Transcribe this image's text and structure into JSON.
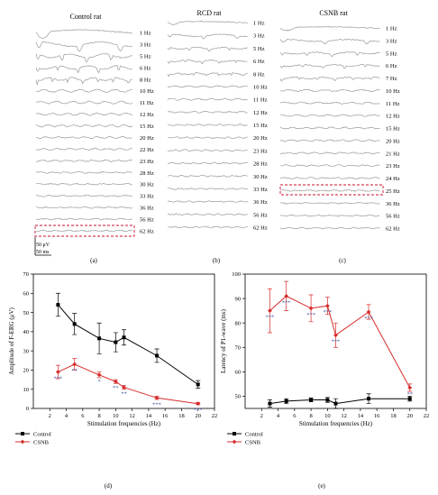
{
  "panels": {
    "a": {
      "title": "Control rat",
      "label": "(a)",
      "freqs": [
        "1 Hz",
        "3 Hz",
        "5 Hz",
        "6 Hz",
        "8 Hz",
        "10 Hz",
        "11 Hz",
        "12 Hz",
        "15 Hz",
        "20 Hz",
        "22 Hz",
        "23 Hz",
        "28 Hz",
        "30 Hz",
        "33 Hz",
        "36 Hz",
        "56 Hz",
        "62 Hz"
      ],
      "boxed": "62 Hz",
      "scale_amp": "50 μV",
      "scale_time": "50 ms"
    },
    "b": {
      "title": "RCD rat",
      "label": "(b)",
      "freqs": [
        "1 Hz",
        "3 Hz",
        "5 Hz",
        "6 Hz",
        "8 Hz",
        "10 Hz",
        "11 Hz",
        "12 Hz",
        "15 Hz",
        "20 Hz",
        "23 Hz",
        "28 Hz",
        "30 Hz",
        "33 Hz",
        "36 Hz",
        "56 Hz",
        "62 Hz"
      ]
    },
    "c": {
      "title": "CSNB rat",
      "label": "(c)",
      "freqs": [
        "1 Hz",
        "3 Hz",
        "5 Hz",
        "6 Hz",
        "7 Hz",
        "10 Hz",
        "11 Hz",
        "12 Hz",
        "15 Hz",
        "20 Hz",
        "21 Hz",
        "23 Hz",
        "24 Hz",
        "25 Hz",
        "36 Hz",
        "56 Hz",
        "62 Hz"
      ],
      "boxed": "25 Hz"
    },
    "d": {
      "label": "(d)"
    },
    "e": {
      "label": "(e)"
    }
  },
  "colors": {
    "control": "#000000",
    "csnb": "#d62d2d",
    "trace": "#9a9a9a",
    "box": "#c8102e"
  },
  "chart_data": [
    {
      "type": "line",
      "panel": "d",
      "xlabel": "Stimulation frequencies (Hz)",
      "ylabel": "Amplitude of F-ERG (μV)",
      "xlim": [
        0,
        22
      ],
      "ylim": [
        0,
        70
      ],
      "xticks": [
        "2",
        "4",
        "6",
        "8",
        "10",
        "12",
        "14",
        "16",
        "18",
        "20",
        "22"
      ],
      "yticks": [
        "0",
        "10",
        "20",
        "30",
        "40",
        "50",
        "60",
        "70"
      ],
      "legend_position": "bottom-left",
      "series": [
        {
          "name": "Control",
          "color": "#000000",
          "marker": "square",
          "x": [
            3,
            5,
            8,
            10,
            11,
            15,
            20
          ],
          "y": [
            54,
            44,
            36.5,
            34.5,
            37,
            27.5,
            12.5
          ],
          "err": [
            6,
            5.5,
            8,
            5,
            4,
            3.5,
            2
          ]
        },
        {
          "name": "CSNB",
          "color": "#d62d2d",
          "marker": "diamond",
          "x": [
            3,
            5,
            8,
            10,
            11,
            15,
            20
          ],
          "y": [
            19,
            23,
            17.5,
            14,
            11,
            5.5,
            2.5
          ],
          "err": [
            3.5,
            3,
            1.5,
            1,
            1,
            0.8,
            0.6
          ],
          "annotations": [
            "***",
            "**",
            "*",
            "**",
            "**",
            "***",
            "***"
          ]
        }
      ]
    },
    {
      "type": "line",
      "panel": "e",
      "xlabel": "Stimulation frequencies (Hz)",
      "ylabel": "Latency of P1-wave (ms)",
      "xlim": [
        0,
        22
      ],
      "ylim": [
        45,
        100
      ],
      "xticks": [
        "2",
        "4",
        "6",
        "8",
        "10",
        "12",
        "14",
        "16",
        "18",
        "20",
        "22"
      ],
      "yticks": [
        "50",
        "60",
        "70",
        "80",
        "90",
        "100"
      ],
      "legend_position": "bottom-left",
      "series": [
        {
          "name": "Control",
          "color": "#000000",
          "marker": "square",
          "x": [
            3,
            5,
            8,
            10,
            11,
            15,
            20
          ],
          "y": [
            47,
            48,
            48.5,
            48.5,
            47,
            49,
            49
          ],
          "err": [
            1.5,
            1,
            0.8,
            1,
            2,
            2,
            1
          ]
        },
        {
          "name": "CSNB",
          "color": "#d62d2d",
          "marker": "diamond",
          "x": [
            3,
            5,
            8,
            10,
            11,
            15,
            20
          ],
          "y": [
            85,
            91,
            86,
            87,
            75,
            84.5,
            53.5
          ],
          "err": [
            9,
            6,
            5.5,
            3.5,
            5,
            3,
            1.5
          ],
          "annotations": [
            "***",
            "***",
            "***",
            "***",
            "***",
            "***",
            "**"
          ]
        }
      ]
    }
  ]
}
